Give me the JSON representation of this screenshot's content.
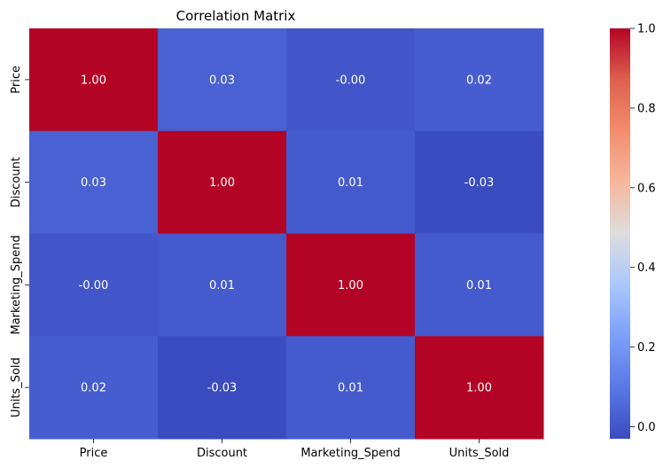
{
  "chart_data": {
    "type": "heatmap",
    "title": "Correlation Matrix",
    "xlabel": "",
    "ylabel": "",
    "rows": [
      "Price",
      "Discount",
      "Marketing_Spend",
      "Units_Sold"
    ],
    "columns": [
      "Price",
      "Discount",
      "Marketing_Spend",
      "Units_Sold"
    ],
    "values": [
      [
        1.0,
        0.03,
        -0.0,
        0.02
      ],
      [
        0.03,
        1.0,
        0.01,
        -0.03
      ],
      [
        -0.0,
        0.01,
        1.0,
        0.01
      ],
      [
        0.02,
        -0.03,
        0.01,
        1.0
      ]
    ],
    "cell_labels": [
      [
        "1.00",
        "0.03",
        "-0.00",
        "0.02"
      ],
      [
        "0.03",
        "1.00",
        "0.01",
        "-0.03"
      ],
      [
        "-0.00",
        "0.01",
        "1.00",
        "0.01"
      ],
      [
        "0.02",
        "-0.03",
        "0.01",
        "1.00"
      ]
    ],
    "colormap": "coolwarm",
    "colorbar": {
      "range": [
        -0.03,
        1.0
      ],
      "ticks": [
        0.0,
        0.2,
        0.4,
        0.6,
        0.8,
        1.0
      ],
      "tick_labels": [
        "0.0",
        "0.2",
        "0.4",
        "0.6",
        "0.8",
        "1.0"
      ]
    },
    "grid": false,
    "legend": "colorbar-right"
  }
}
